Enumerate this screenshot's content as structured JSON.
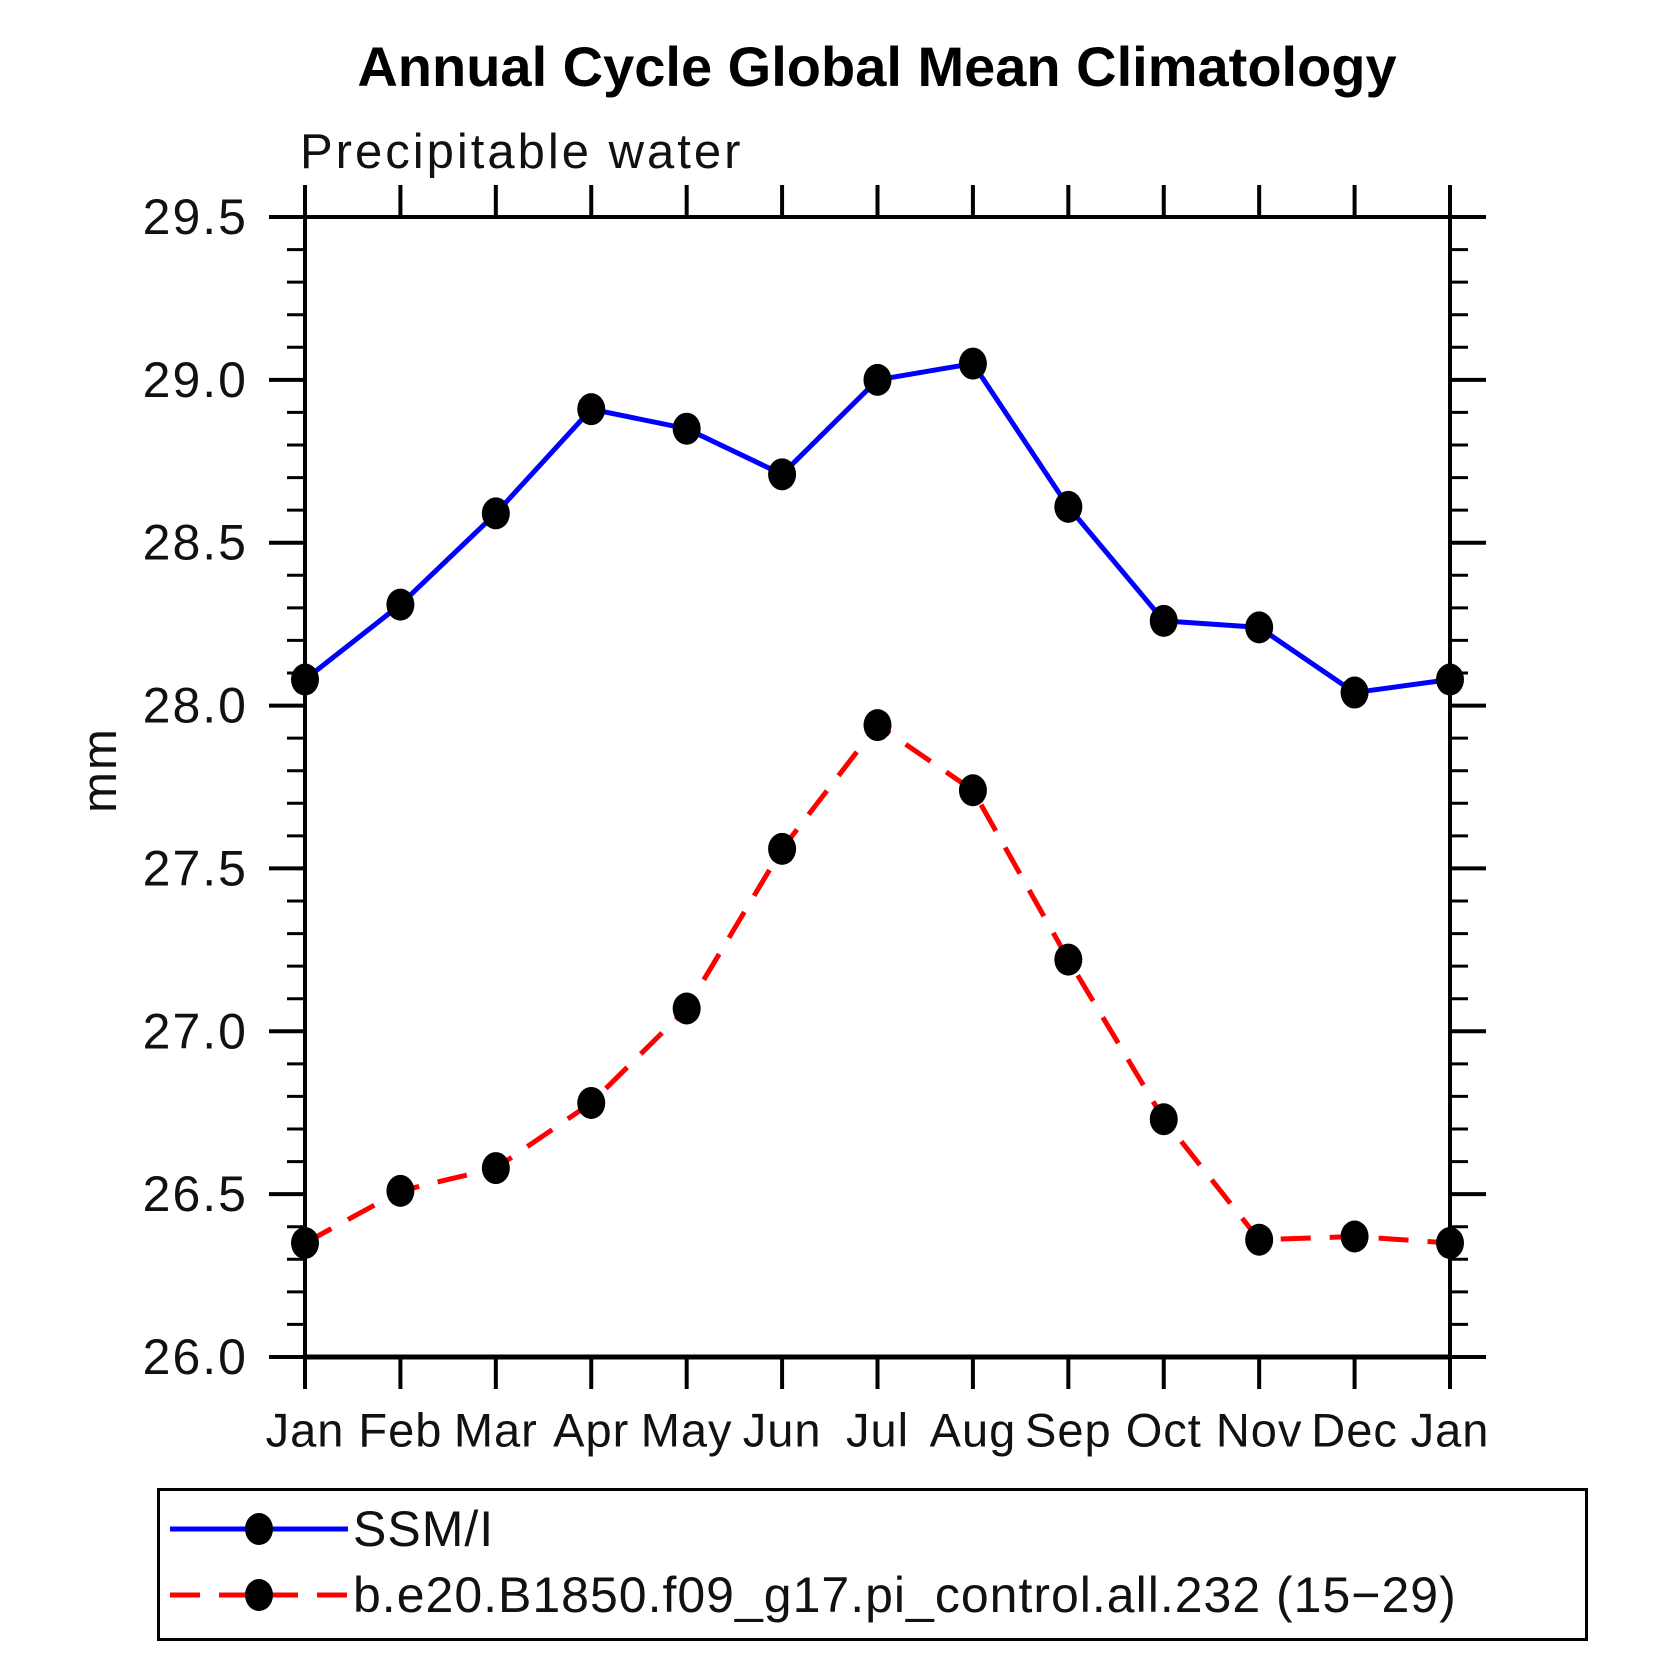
{
  "title": "Annual Cycle Global Mean Climatology",
  "subtitle": "Precipitable water",
  "ylabel": "mm",
  "legend": {
    "entries": [
      {
        "label": "SSM/I",
        "color": "#0000ff",
        "style": "solid"
      },
      {
        "label": "b.e20.B1850.f09_g17.pi_control.all.232 (15−29)",
        "color": "#ff0000",
        "style": "dashed"
      }
    ]
  },
  "chart_data": {
    "type": "line",
    "title": "Annual Cycle Global Mean Climatology",
    "subtitle": "Precipitable water",
    "xlabel": "",
    "ylabel": "mm",
    "categories": [
      "Jan",
      "Feb",
      "Mar",
      "Apr",
      "May",
      "Jun",
      "Jul",
      "Aug",
      "Sep",
      "Oct",
      "Nov",
      "Dec",
      "Jan"
    ],
    "series": [
      {
        "name": "SSM/I",
        "color": "#0000ff",
        "line_style": "solid",
        "marker": "filled-black-circle",
        "values": [
          28.08,
          28.31,
          28.59,
          28.91,
          28.85,
          28.71,
          29.0,
          29.05,
          28.61,
          28.26,
          28.24,
          28.04,
          28.08
        ]
      },
      {
        "name": "b.e20.B1850.f09_g17.pi_control.all.232 (15−29)",
        "color": "#ff0000",
        "line_style": "dashed",
        "marker": "filled-black-circle",
        "values": [
          26.35,
          26.51,
          26.58,
          26.78,
          27.07,
          27.56,
          27.94,
          27.74,
          27.22,
          26.73,
          26.36,
          26.37,
          26.35
        ]
      }
    ],
    "ylim": [
      26.0,
      29.5
    ],
    "ytick_labels": [
      "26.0",
      "26.5",
      "27.0",
      "27.5",
      "28.0",
      "28.5",
      "29.0",
      "29.5"
    ],
    "ytick_major_step": 0.5,
    "ytick_minor_step": 0.1,
    "grid": false,
    "legend_position": "bottom-left-box"
  }
}
